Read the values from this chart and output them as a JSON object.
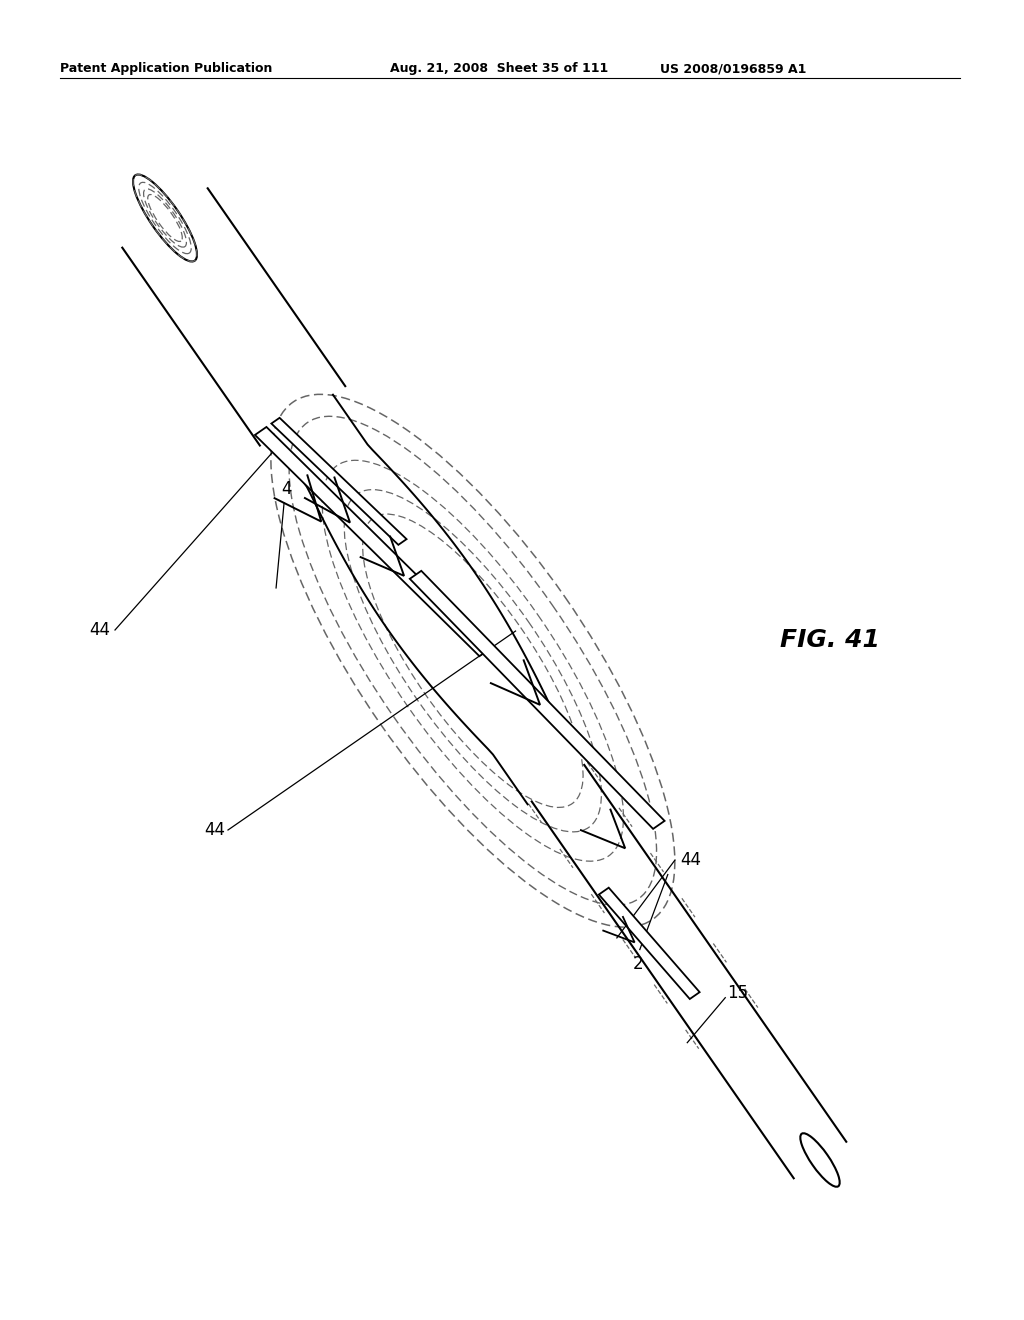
{
  "title_left": "Patent Application Publication",
  "title_mid": "Aug. 21, 2008  Sheet 35 of 111",
  "title_right": "US 2008/0196859 A1",
  "fig_label": "FIG. 41",
  "bg_color": "#ffffff",
  "line_color": "#000000",
  "dashed_color": "#666666",
  "figsize": [
    10.24,
    13.2
  ],
  "dpi": 100,
  "xlim": [
    0,
    1024
  ],
  "ylim": [
    0,
    1320
  ]
}
